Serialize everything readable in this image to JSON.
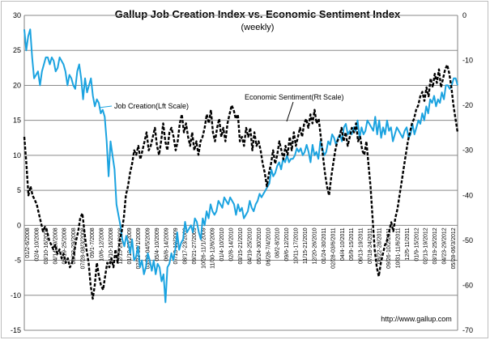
{
  "chart_data": {
    "type": "line",
    "title": "Gallup Job Creation Index vs. Economic Sentiment Index",
    "subtitle": "(weekly)",
    "source": "http://www.gallup.com",
    "grid": true,
    "left_axis": {
      "ylim": [
        -15,
        30
      ],
      "ticks": [
        -15,
        -10,
        -5,
        0,
        5,
        10,
        15,
        20,
        25,
        30
      ]
    },
    "right_axis": {
      "ylim": [
        -70,
        0
      ],
      "ticks": [
        -70,
        -60,
        -50,
        -40,
        -30,
        -20,
        -10,
        0
      ]
    },
    "x_tick_labels": [
      "01/2-6/2008",
      "02/4-10/2008",
      "03/10-16/2008",
      "04/14-20/2008",
      "05/19-25/2008",
      "06/23-29/2008",
      "07/28-08/3/2008",
      "09/1-7/2008",
      "10/6-12/2008",
      "11/10-16/2008",
      "12/15-21/2008",
      "01/19-25/2009",
      "02/23-03/1/2009",
      "03/30-04/5/2009",
      "05/4-10/2009",
      "06/8-14/2009",
      "07/13-19/2009",
      "08/17-23/2009",
      "09/21-27/2009",
      "10/26-11/1/2009",
      "11/30-12/6/2009",
      "01/4-10/2010",
      "02/8-14/2010",
      "03/15-21/2010",
      "04/19-25/2010",
      "05/24-30/2010",
      "06/28-7/4/2010",
      "08/2-8/2010",
      "09/6-12/2010",
      "10/11-17/2010",
      "11/15-21/2010",
      "12/20-26/2010",
      "01/24-30/2011",
      "02/28-03/6/2011",
      "04/4-10/2011",
      "05/9-15/2011",
      "06/13-19/2011",
      "07/18-24/2011",
      "08/22-28/2011",
      "09/26-10/2/2011",
      "10/31-11/6/2011",
      "12/5-11/2011",
      "01/9-15/2012",
      "02/13-19/2012",
      "03/19-25/2012",
      "04/23-29/2012",
      "05/28-06/3/2012"
    ],
    "annotations": [
      {
        "text": "Job Creation(Lft Scale)"
      },
      {
        "text": "Economic Sentiment(Rt Scale)"
      }
    ],
    "series": [
      {
        "axis": "left",
        "color": "#1ba3e0",
        "style": "solid",
        "values": [
          28,
          25,
          27,
          28,
          24,
          21,
          21.5,
          22,
          20,
          22,
          23,
          24,
          24,
          23,
          24,
          23.5,
          22,
          22.5,
          24,
          23.5,
          23,
          22,
          20,
          21.5,
          21,
          20,
          19.5,
          22,
          23,
          21,
          18,
          21,
          19,
          20,
          21,
          18.5,
          17,
          18,
          17.5,
          16,
          16.5,
          15.5,
          12,
          7,
          12,
          10,
          8,
          3,
          1.5,
          0,
          -2,
          -3,
          -1.5,
          -2.5,
          -4,
          -2,
          -5,
          -4.5,
          -3,
          -6,
          -5,
          -7,
          -6,
          -4,
          -5,
          -6.5,
          -5,
          -7,
          -5.5,
          -6,
          -8,
          -7,
          -11,
          -6,
          -5.5,
          -4,
          -5,
          -3.5,
          -1,
          -3.5,
          -2.5,
          -2,
          0.5,
          -1,
          -0.5,
          0,
          -1,
          1,
          0.5,
          -1,
          -2,
          1,
          0,
          2,
          1,
          3,
          2,
          1.5,
          2,
          3.5,
          3,
          2.5,
          4,
          3.5,
          3,
          4,
          3.5,
          3,
          1.5,
          3,
          2,
          2.5,
          1,
          1.5,
          2,
          3.5,
          2.5,
          2,
          3,
          3.5,
          4.5,
          4,
          4.5,
          5,
          5.5,
          6,
          8,
          7,
          7.5,
          8.5,
          9,
          8,
          9.5,
          9,
          10,
          9,
          9.5,
          9.5,
          10,
          11,
          10.5,
          11,
          10,
          10.5,
          11.5,
          10.5,
          9,
          11.5,
          10,
          10.5,
          9.5,
          12,
          11,
          10,
          10.5,
          12,
          11.5,
          13,
          12.5,
          11.5,
          12.5,
          13,
          12,
          14,
          14.5,
          13,
          13.5,
          13,
          14,
          13.5,
          15,
          12.5,
          14,
          13,
          13.5,
          15,
          14.5,
          14,
          13.5,
          15.5,
          13,
          15,
          12.5,
          14,
          13,
          15,
          13.5,
          14,
          12,
          13,
          14,
          13.5,
          13,
          12.5,
          13.5,
          14,
          12.5,
          13,
          14.5,
          13,
          14,
          15,
          14.5,
          16,
          15,
          17,
          16,
          18,
          17.5,
          18.5,
          17,
          18,
          17.5,
          19,
          18,
          20,
          20,
          19.5,
          20,
          21,
          21,
          20
        ]
      },
      {
        "axis": "right",
        "color": "#000000",
        "style": "dashed",
        "values": [
          -27,
          -33,
          -40,
          -38,
          -40,
          -41,
          -42,
          -44,
          -46,
          -48,
          -47,
          -48,
          -50,
          -51,
          -52,
          -51,
          -53,
          -52,
          -54,
          -53,
          -55,
          -54,
          -56,
          -55,
          -53,
          -50,
          -48,
          -45,
          -44,
          -48,
          -52,
          -55,
          -60,
          -63,
          -60,
          -55,
          -58,
          -60,
          -61,
          -58,
          -55,
          -56,
          -54,
          -56,
          -52,
          -55,
          -50,
          -48,
          -45,
          -40,
          -38,
          -35,
          -33,
          -30,
          -31,
          -29,
          -32,
          -30,
          -28,
          -26,
          -30,
          -29,
          -27,
          -25,
          -29,
          -31,
          -28,
          -24,
          -28,
          -30,
          -26,
          -25,
          -27,
          -30,
          -28,
          -24,
          -22,
          -26,
          -24,
          -27,
          -29,
          -26,
          -30,
          -28,
          -31,
          -28,
          -27,
          -25,
          -22,
          -24,
          -21,
          -26,
          -28,
          -25,
          -23,
          -27,
          -25,
          -28,
          -24,
          -22,
          -20,
          -21,
          -23,
          -22,
          -28,
          -27,
          -29,
          -25,
          -27,
          -25,
          -30,
          -26,
          -29,
          -28,
          -30,
          -33,
          -35,
          -38,
          -35,
          -33,
          -30,
          -33,
          -31,
          -28,
          -30,
          -32,
          -29,
          -31,
          -27,
          -30,
          -26,
          -29,
          -27,
          -25,
          -27,
          -24,
          -23,
          -25,
          -22,
          -24,
          -21,
          -24,
          -23,
          -27,
          -31,
          -35,
          -38,
          -40,
          -36,
          -33,
          -30,
          -28,
          -27,
          -25,
          -28,
          -26,
          -29,
          -27,
          -25,
          -26,
          -24,
          -28,
          -27,
          -30,
          -31,
          -28,
          -33,
          -38,
          -45,
          -52,
          -56,
          -58,
          -55,
          -53,
          -51,
          -50,
          -48,
          -46,
          -48,
          -45,
          -43,
          -40,
          -37,
          -34,
          -31,
          -28,
          -26,
          -24,
          -23,
          -21,
          -20,
          -18,
          -17,
          -19,
          -16,
          -18,
          -14,
          -16,
          -13,
          -15,
          -12,
          -16,
          -14,
          -12,
          -11,
          -13,
          -16,
          -20,
          -23,
          -26
        ]
      }
    ]
  }
}
